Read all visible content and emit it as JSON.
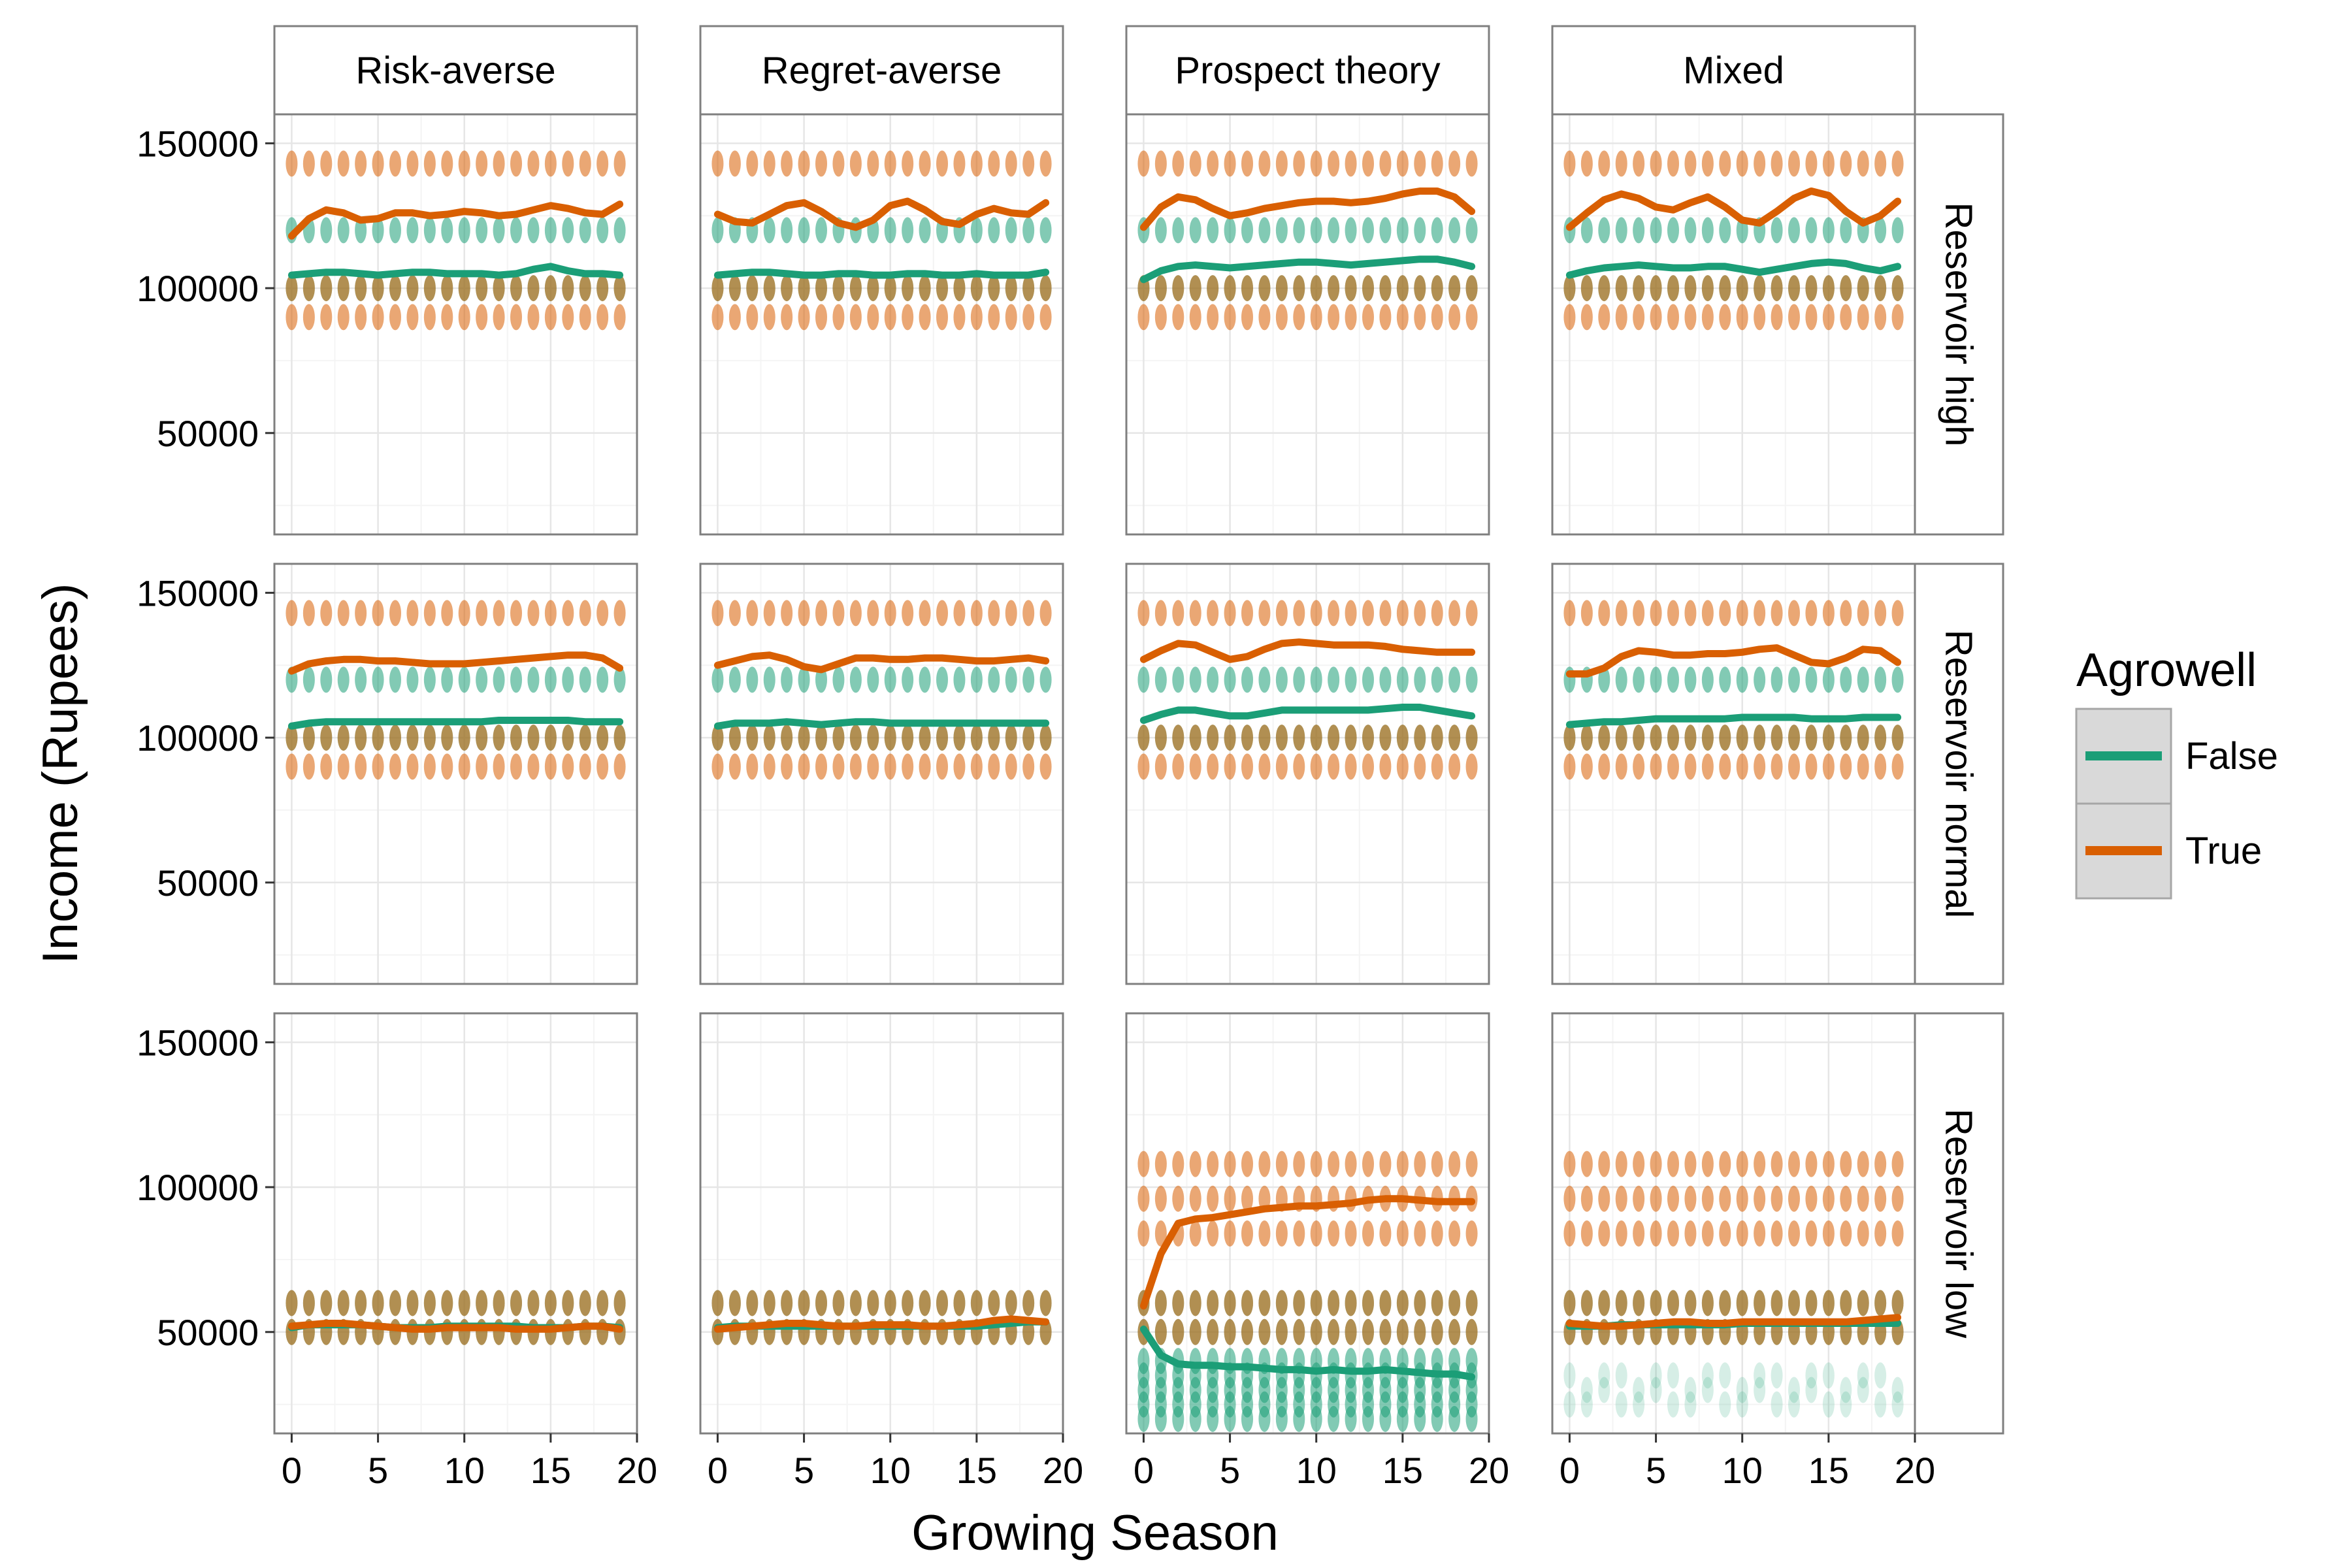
{
  "chart_data": {
    "type": "scatter",
    "xlabel": "Growing Season",
    "ylabel": "Income (Rupees)",
    "xlim": [
      -1,
      20
    ],
    "ylim": [
      15000,
      160000
    ],
    "x_ticks": [
      "0",
      "5",
      "10",
      "15",
      "20"
    ],
    "y_ticks": [
      "50000",
      "100000",
      "150000"
    ],
    "x_tick_values": [
      0,
      5,
      10,
      15,
      20
    ],
    "y_tick_values": [
      50000,
      100000,
      150000
    ],
    "grid": true,
    "legend": {
      "title": "Agrowell",
      "placement": "right",
      "entries": [
        {
          "key": "False",
          "label": "False",
          "color": "#1b9e77"
        },
        {
          "key": "True",
          "label": "True",
          "color": "#d95f02"
        }
      ]
    },
    "columns": [
      "Risk-averse",
      "Regret-averse",
      "Prospect theory",
      "Mixed"
    ],
    "rows": [
      "Reservoir high",
      "Reservoir normal",
      "Reservoir low"
    ],
    "seasons": [
      0,
      1,
      2,
      3,
      4,
      5,
      6,
      7,
      8,
      9,
      10,
      11,
      12,
      13,
      14,
      15,
      16,
      17,
      18,
      19
    ],
    "panels": [
      {
        "row": "Reservoir high",
        "column": "Risk-averse",
        "points": {
          "False": [
            120000,
            100000
          ],
          "True": [
            143000,
            100000,
            90000
          ]
        },
        "smooth": {
          "False": [
            104500,
            105000,
            105500,
            105500,
            105000,
            104500,
            105000,
            105500,
            105500,
            105000,
            105000,
            105000,
            104500,
            105000,
            106500,
            107500,
            106000,
            105000,
            105000,
            104500
          ],
          "True": [
            118000,
            124000,
            127000,
            126000,
            123500,
            124000,
            126000,
            126000,
            125000,
            125500,
            126500,
            126000,
            125000,
            125500,
            127000,
            128500,
            127500,
            126000,
            125500,
            129000
          ]
        }
      },
      {
        "row": "Reservoir high",
        "column": "Regret-averse",
        "points": {
          "False": [
            120000,
            100000
          ],
          "True": [
            143000,
            100000,
            90000
          ]
        },
        "smooth": {
          "False": [
            104500,
            105000,
            105500,
            105500,
            105000,
            104500,
            104500,
            105000,
            105000,
            104500,
            104500,
            105000,
            105000,
            104500,
            104500,
            105000,
            104500,
            104500,
            104500,
            105500
          ],
          "True": [
            125500,
            123000,
            122500,
            125500,
            128500,
            129500,
            126500,
            122500,
            121000,
            123500,
            128500,
            130000,
            127000,
            123000,
            122000,
            125500,
            127500,
            126000,
            125500,
            129500
          ]
        }
      },
      {
        "row": "Reservoir high",
        "column": "Prospect theory",
        "points": {
          "False": [
            120000,
            100000
          ],
          "True": [
            143000,
            100000,
            90000
          ]
        },
        "smooth": {
          "False": [
            103000,
            106000,
            107500,
            108000,
            107500,
            107000,
            107500,
            108000,
            108500,
            109000,
            109000,
            108500,
            108000,
            108500,
            109000,
            109500,
            110000,
            110000,
            109000,
            107500
          ],
          "True": [
            121000,
            128000,
            131500,
            130500,
            127500,
            125000,
            126000,
            127500,
            128500,
            129500,
            130000,
            130000,
            129500,
            130000,
            131000,
            132500,
            133500,
            133500,
            131500,
            126500
          ]
        }
      },
      {
        "row": "Reservoir high",
        "column": "Mixed",
        "points": {
          "False": [
            120000,
            100000
          ],
          "True": [
            143000,
            100000,
            90000
          ]
        },
        "smooth": {
          "False": [
            104500,
            106000,
            107000,
            107500,
            108000,
            107500,
            107000,
            107000,
            107500,
            107500,
            106500,
            105500,
            106500,
            107500,
            108500,
            109000,
            108500,
            107000,
            106000,
            107500
          ],
          "True": [
            121000,
            126000,
            130500,
            132500,
            131000,
            128000,
            127000,
            129500,
            131500,
            128000,
            123500,
            122500,
            126500,
            131000,
            133500,
            132000,
            126500,
            122500,
            125000,
            130000
          ]
        }
      },
      {
        "row": "Reservoir normal",
        "column": "Risk-averse",
        "points": {
          "False": [
            120000,
            100000
          ],
          "True": [
            143000,
            100000,
            90000
          ]
        },
        "smooth": {
          "False": [
            104000,
            105000,
            105500,
            105500,
            105500,
            105500,
            105500,
            105500,
            105500,
            105500,
            105500,
            105500,
            106000,
            106000,
            106000,
            106000,
            106000,
            105500,
            105500,
            105500
          ],
          "True": [
            123000,
            125500,
            126500,
            127000,
            127000,
            126500,
            126500,
            126000,
            125500,
            125500,
            125500,
            126000,
            126500,
            127000,
            127500,
            128000,
            128500,
            128500,
            127500,
            124000
          ]
        }
      },
      {
        "row": "Reservoir normal",
        "column": "Regret-averse",
        "points": {
          "False": [
            120000,
            100000
          ],
          "True": [
            143000,
            100000,
            90000
          ]
        },
        "smooth": {
          "False": [
            104000,
            105000,
            105000,
            105000,
            105500,
            105000,
            104500,
            105000,
            105500,
            105500,
            105000,
            105000,
            105000,
            105000,
            105000,
            105000,
            105000,
            105000,
            105000,
            105000
          ],
          "True": [
            125000,
            126500,
            128000,
            128500,
            127000,
            124500,
            123500,
            125500,
            127500,
            127500,
            127000,
            127000,
            127500,
            127500,
            127000,
            126500,
            126500,
            127000,
            127500,
            126500
          ]
        }
      },
      {
        "row": "Reservoir normal",
        "column": "Prospect theory",
        "points": {
          "False": [
            120000,
            100000
          ],
          "True": [
            143000,
            100000,
            90000
          ]
        },
        "smooth": {
          "False": [
            106000,
            108000,
            109500,
            109500,
            108500,
            107500,
            107500,
            108500,
            109500,
            109500,
            109500,
            109500,
            109500,
            109500,
            110000,
            110500,
            110500,
            109500,
            108500,
            107500
          ],
          "True": [
            127000,
            130000,
            132500,
            132000,
            129500,
            127000,
            128000,
            130500,
            132500,
            133000,
            132500,
            132000,
            132000,
            132000,
            131500,
            130500,
            130000,
            129500,
            129500,
            129500
          ]
        }
      },
      {
        "row": "Reservoir normal",
        "column": "Mixed",
        "points": {
          "False": [
            120000,
            100000
          ],
          "True": [
            143000,
            100000,
            90000
          ]
        },
        "smooth": {
          "False": [
            104500,
            105000,
            105500,
            105500,
            106000,
            106500,
            106500,
            106500,
            106500,
            106500,
            107000,
            107000,
            107000,
            107000,
            106500,
            106500,
            106500,
            107000,
            107000,
            107000
          ],
          "True": [
            122000,
            122000,
            124000,
            128000,
            130000,
            129500,
            128500,
            128500,
            129000,
            129000,
            129500,
            130500,
            131000,
            128500,
            126000,
            125500,
            127500,
            130500,
            130000,
            126000
          ]
        }
      },
      {
        "row": "Reservoir low",
        "column": "Risk-averse",
        "points": {
          "False": [
            60000,
            50000
          ],
          "True": [
            60000,
            50000
          ]
        },
        "smooth": {
          "False": [
            51500,
            52500,
            52500,
            52500,
            52500,
            52000,
            51500,
            51500,
            51500,
            52000,
            52000,
            52000,
            52000,
            52000,
            51500,
            51500,
            51500,
            52000,
            52000,
            51500
          ],
          "True": [
            52000,
            52500,
            53000,
            53000,
            52500,
            52000,
            51500,
            51000,
            51000,
            51500,
            51500,
            51500,
            51500,
            51000,
            51000,
            51000,
            51500,
            52000,
            52000,
            51000
          ]
        }
      },
      {
        "row": "Reservoir low",
        "column": "Regret-averse",
        "points": {
          "False": [
            60000,
            50000
          ],
          "True": [
            60000,
            50000
          ]
        },
        "smooth": {
          "False": [
            51500,
            52000,
            52000,
            52000,
            52000,
            52000,
            52000,
            52000,
            52000,
            52000,
            52000,
            52000,
            52000,
            52000,
            52000,
            52000,
            52500,
            53000,
            53500,
            53500
          ],
          "True": [
            51000,
            51500,
            52000,
            52500,
            53000,
            53000,
            52500,
            52000,
            52000,
            52500,
            52500,
            52500,
            52000,
            52000,
            52500,
            53000,
            54000,
            54500,
            54000,
            53500
          ]
        }
      },
      {
        "row": "Reservoir low",
        "column": "Prospect theory",
        "points": {
          "False": [
            60000,
            50000,
            40000,
            35000,
            30000,
            25000,
            20000
          ],
          "True": [
            108000,
            96000,
            84000,
            60000,
            50000
          ]
        },
        "smooth": {
          "False": [
            51000,
            42000,
            39000,
            38500,
            38500,
            38000,
            38000,
            37500,
            37000,
            37000,
            36500,
            37000,
            36500,
            36500,
            37000,
            36500,
            36000,
            35500,
            35500,
            34500
          ],
          "True": [
            59000,
            77000,
            87500,
            89000,
            89500,
            90500,
            91500,
            92500,
            93000,
            93500,
            93500,
            94000,
            94500,
            95500,
            96000,
            96000,
            95500,
            95000,
            95000,
            95000
          ]
        }
      },
      {
        "row": "Reservoir low",
        "column": "Mixed",
        "points": {
          "False": [
            60000,
            50000,
            35000,
            30000,
            25000
          ],
          "True": [
            108000,
            96000,
            84000,
            60000,
            50000
          ]
        },
        "smooth": {
          "False": [
            52000,
            52000,
            52000,
            52500,
            52500,
            52500,
            52500,
            52500,
            52500,
            52500,
            53000,
            53000,
            53000,
            53000,
            53000,
            53000,
            53000,
            53000,
            53000,
            53000
          ],
          "True": [
            53000,
            52500,
            52000,
            52000,
            52500,
            53000,
            53500,
            53500,
            53000,
            53000,
            53500,
            53500,
            53500,
            53500,
            53500,
            53500,
            53500,
            54000,
            54500,
            55000
          ]
        }
      }
    ]
  }
}
